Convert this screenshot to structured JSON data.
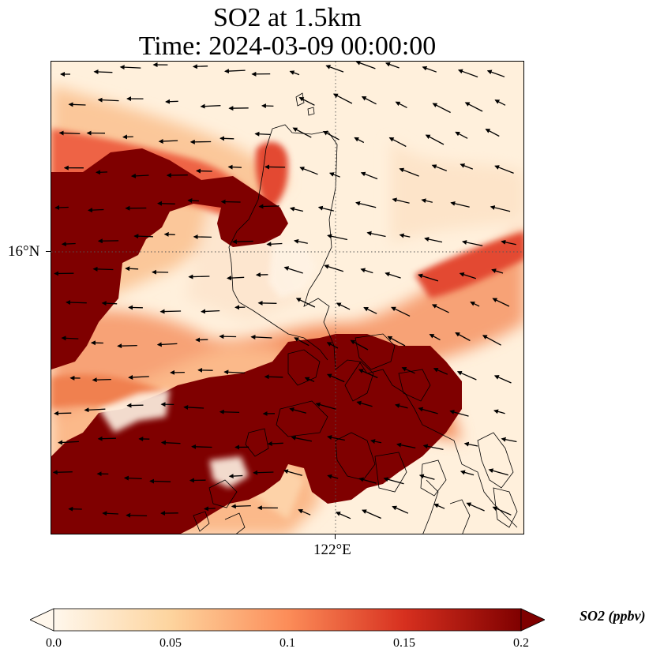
{
  "title": {
    "line1": "SO2 at 1.5km",
    "line2": "Time: 2024-03-09 00:00:00"
  },
  "map": {
    "lat_tick_label": "16°N",
    "lon_tick_label": "122°E",
    "gridlines": "dotted gray at 16°N and 122°E",
    "coastline_color": "#000000",
    "wind_vector_color": "#000000"
  },
  "colorbar": {
    "unit_label": "SO2 (ppbv)",
    "tick_labels": [
      "0.0",
      "0.05",
      "0.1",
      "0.15",
      "0.2"
    ],
    "extend": "both",
    "colormap": "OrRd",
    "colors": [
      "#fff7ec",
      "#fdd49e",
      "#fc8d59",
      "#d7301f",
      "#7f0000"
    ]
  }
}
